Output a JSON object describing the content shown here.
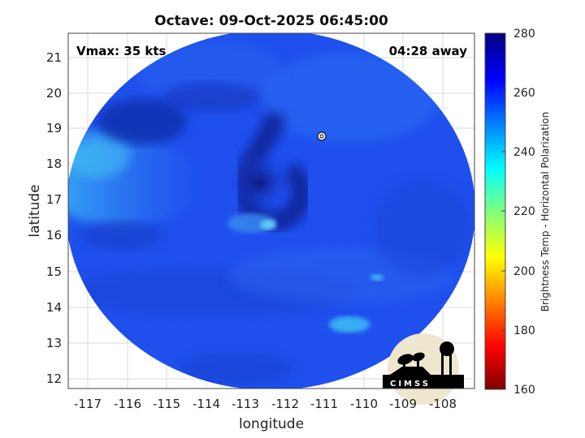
{
  "title": "Octave: 09-Oct-2025 06:45:00",
  "vmax_label": "Vmax: 35 kts",
  "time_away_label": "04:28 away",
  "xlabel": "longitude",
  "ylabel": "latitude",
  "x_ticks": [
    "-117",
    "-116",
    "-115",
    "-114",
    "-113",
    "-112",
    "-111",
    "-110",
    "-109",
    "-108"
  ],
  "y_ticks": [
    "21",
    "20",
    "19",
    "18",
    "17",
    "16",
    "15",
    "14",
    "13",
    "12"
  ],
  "colorbar": {
    "label": "Brightness Temp - Horizontal Polarization",
    "ticks": [
      "280",
      "260",
      "240",
      "220",
      "200",
      "180",
      "160"
    ],
    "range": [
      160,
      280
    ],
    "colormap": "jet"
  },
  "logo_text": "CIMSS",
  "colors": {
    "swath_base": "#1e4ff0",
    "cold_feature": "#0a1f88",
    "warm_band": "#2a9df0",
    "storm_center_marker": "#ffffff"
  },
  "storm_center": {
    "lon": -111.05,
    "lat": 18.9
  }
}
